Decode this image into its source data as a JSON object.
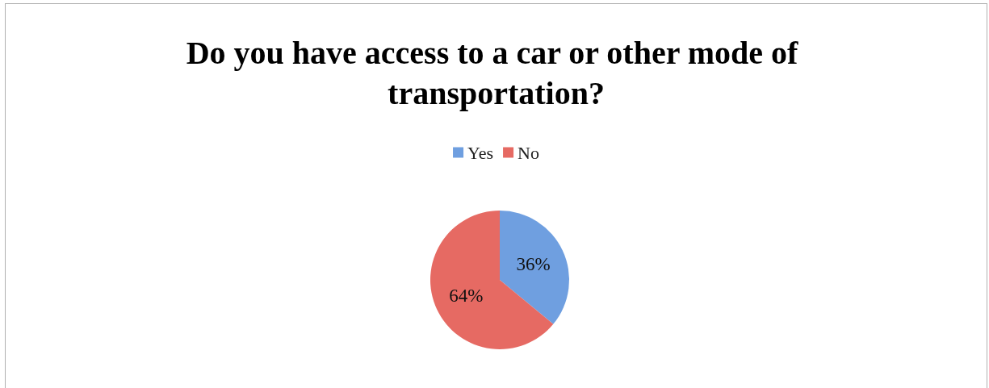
{
  "chart_data": {
    "type": "pie",
    "title": "Do you have access to a car or other mode of transportation?",
    "categories": [
      "Yes",
      "No"
    ],
    "values": [
      36,
      64
    ],
    "colors": [
      "#6f9fe0",
      "#e66a63"
    ],
    "value_labels": [
      "36%",
      "64%"
    ],
    "legend": "top"
  }
}
